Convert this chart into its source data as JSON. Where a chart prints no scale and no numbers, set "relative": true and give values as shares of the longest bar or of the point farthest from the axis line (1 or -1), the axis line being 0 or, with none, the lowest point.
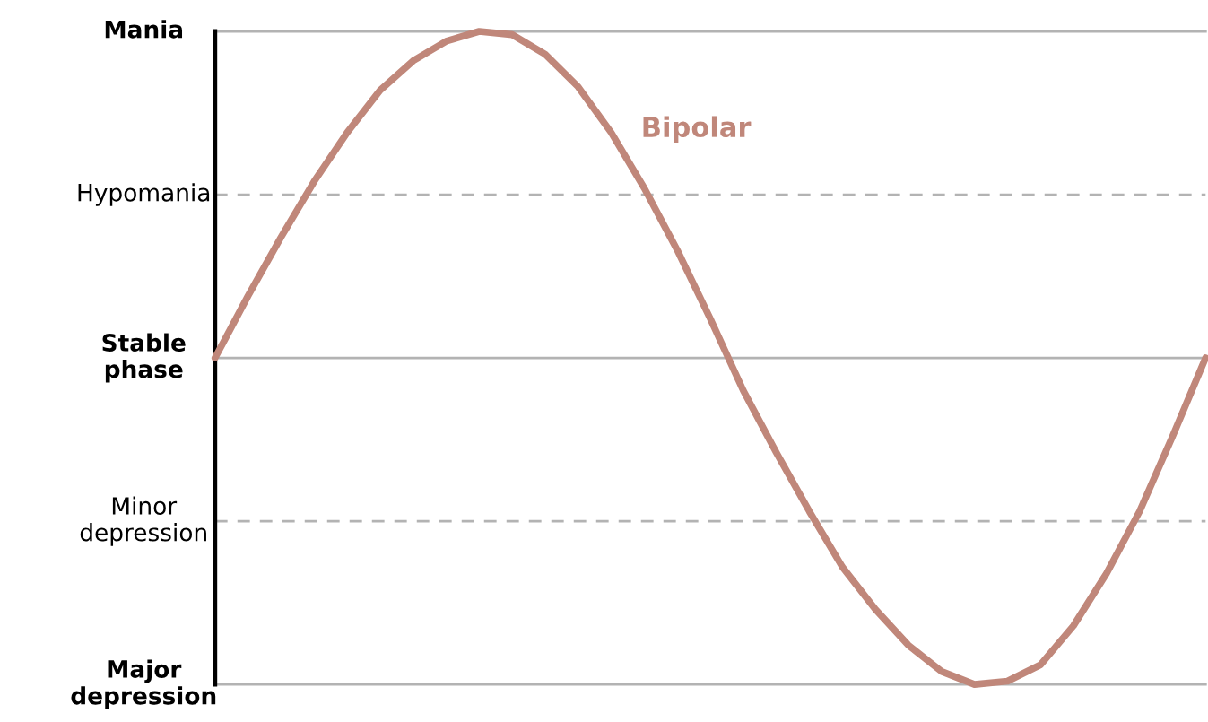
{
  "chart_data": {
    "type": "line",
    "categories": [
      null,
      null,
      null,
      null,
      null,
      null,
      null,
      null,
      null,
      null,
      null,
      null,
      null,
      null,
      null,
      null,
      null,
      null,
      null,
      null,
      null,
      null,
      null,
      null,
      null,
      null,
      null,
      null,
      null,
      null,
      null
    ],
    "relative": true,
    "series": [
      {
        "name": "Bipolar",
        "color": "#c0877a",
        "values": [
          0,
          0.19,
          0.37,
          0.54,
          0.69,
          0.82,
          0.91,
          0.97,
          1.0,
          0.99,
          0.93,
          0.83,
          0.69,
          0.52,
          0.33,
          0.12,
          -0.1,
          -0.29,
          -0.47,
          -0.64,
          -0.77,
          -0.88,
          -0.96,
          -1.0,
          -0.99,
          -0.94,
          -0.82,
          -0.66,
          -0.47,
          -0.24,
          0
        ]
      }
    ],
    "ref_lines": [
      {
        "axis": "y",
        "value": 1,
        "label": "Mania",
        "color": "#b3b3b3",
        "line_style": "solid"
      },
      {
        "axis": "y",
        "value": 0.5,
        "label": "Hypomania",
        "color": "#b3b3b3",
        "line_style": "dashed"
      },
      {
        "axis": "y",
        "value": 0,
        "label": "Stable\nphase",
        "color": "#b3b3b3",
        "line_style": "solid"
      },
      {
        "axis": "y",
        "value": -0.5,
        "label": "Minor\ndepression",
        "color": "#b3b3b3",
        "line_style": "dashed"
      },
      {
        "axis": "y",
        "value": -1,
        "label": "Major\ndepression",
        "color": "#b3b3b3",
        "line_style": "solid"
      }
    ],
    "legend": false,
    "marker": "none",
    "line_style": "solid"
  }
}
